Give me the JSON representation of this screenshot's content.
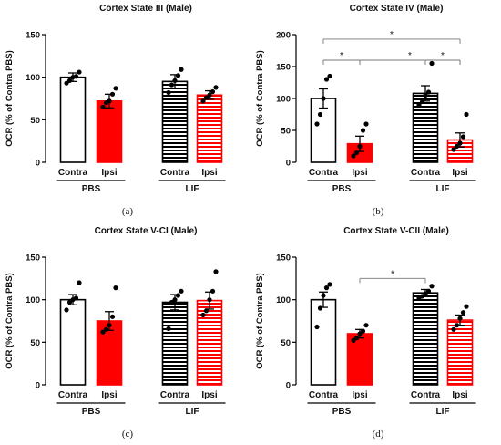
{
  "colors": {
    "pbs_contra_fill": "#ffffff",
    "pbs_ipsi_fill": "#ff0000",
    "lif_contra_stripe": "#000000",
    "lif_ipsi_stripe": "#ff0000",
    "axis": "#000000"
  },
  "chart_data": [
    {
      "type": "bar",
      "caption": "(a)",
      "title": "Cortex State III (Male)",
      "ylabel": "OCR (% of Contra PBS)",
      "ylim": [
        0,
        150
      ],
      "yticks": [
        0,
        50,
        100,
        150
      ],
      "categories": [
        "Contra",
        "Ipsi",
        "Contra",
        "Ipsi"
      ],
      "groups": [
        {
          "name": "PBS",
          "bars": [
            0,
            1
          ]
        },
        {
          "name": "LIF",
          "bars": [
            2,
            3
          ]
        }
      ],
      "values": [
        100,
        72,
        95,
        79
      ],
      "errors": [
        5,
        8,
        8,
        5
      ],
      "points": [
        [
          93,
          96,
          100,
          101,
          106
        ],
        [
          65,
          70,
          72,
          80,
          87
        ],
        [
          82,
          91,
          96,
          102,
          109
        ],
        [
          72,
          76,
          79,
          83,
          88
        ]
      ],
      "significance": []
    },
    {
      "type": "bar",
      "caption": "(b)",
      "title": "Cortex State IV (Male)",
      "ylabel": "OCR (% of Contra PBS)",
      "ylim": [
        0,
        200
      ],
      "yticks": [
        0,
        50,
        100,
        150,
        200
      ],
      "categories": [
        "Contra",
        "Ipsi",
        "Contra",
        "Ipsi"
      ],
      "groups": [
        {
          "name": "PBS",
          "bars": [
            0,
            1
          ]
        },
        {
          "name": "LIF",
          "bars": [
            2,
            3
          ]
        }
      ],
      "values": [
        100,
        29,
        108,
        35
      ],
      "errors": [
        15,
        12,
        12,
        11
      ],
      "points": [
        [
          60,
          75,
          100,
          130,
          135
        ],
        [
          10,
          15,
          25,
          50,
          60
        ],
        [
          90,
          95,
          105,
          110,
          155
        ],
        [
          20,
          25,
          30,
          40,
          75
        ]
      ],
      "significance": [
        {
          "from": 0,
          "to": 1,
          "y": 160,
          "label": "*"
        },
        {
          "from": 1,
          "to": 3,
          "y": 160,
          "label": "*"
        },
        {
          "from": 2,
          "to": 3,
          "y": 160,
          "label": "*"
        },
        {
          "from": 0,
          "to": 3,
          "y": 193,
          "label": "*"
        }
      ]
    },
    {
      "type": "bar",
      "caption": "(c)",
      "title": "Cortex State V-CI (Male)",
      "ylabel": "OCR (% of Contra PBS)",
      "ylim": [
        0,
        150
      ],
      "yticks": [
        0,
        50,
        100,
        150
      ],
      "categories": [
        "Contra",
        "Ipsi",
        "Contra",
        "Ipsi"
      ],
      "groups": [
        {
          "name": "PBS",
          "bars": [
            0,
            1
          ]
        },
        {
          "name": "LIF",
          "bars": [
            2,
            3
          ]
        }
      ],
      "values": [
        100,
        75,
        97,
        99
      ],
      "errors": [
        6,
        11,
        9,
        10
      ],
      "points": [
        [
          88,
          97,
          100,
          102,
          120
        ],
        [
          62,
          65,
          70,
          80,
          114
        ],
        [
          66,
          97,
          100,
          105,
          110
        ],
        [
          82,
          87,
          100,
          110,
          133
        ]
      ],
      "significance": []
    },
    {
      "type": "bar",
      "caption": "(d)",
      "title": "Cortex State V-CII (Male)",
      "ylabel": "OCR (% of Contra PBS)",
      "ylim": [
        0,
        150
      ],
      "yticks": [
        0,
        50,
        100,
        150
      ],
      "categories": [
        "Contra",
        "Ipsi",
        "Contra",
        "Ipsi"
      ],
      "groups": [
        {
          "name": "PBS",
          "bars": [
            0,
            1
          ]
        },
        {
          "name": "LIF",
          "bars": [
            2,
            3
          ]
        }
      ],
      "values": [
        100,
        60,
        108,
        76
      ],
      "errors": [
        9,
        5,
        4,
        6
      ],
      "points": [
        [
          68,
          90,
          105,
          114,
          118
        ],
        [
          52,
          55,
          60,
          63,
          70
        ],
        [
          102,
          104,
          107,
          110,
          116
        ],
        [
          65,
          70,
          78,
          85,
          92
        ]
      ],
      "significance": [
        {
          "from": 1,
          "to": 2,
          "y": 125,
          "label": "*"
        }
      ]
    }
  ]
}
